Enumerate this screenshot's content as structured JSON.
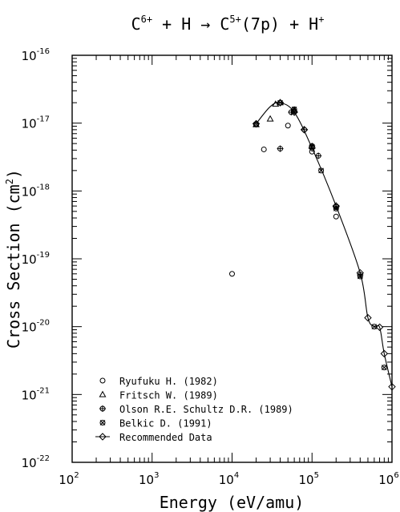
{
  "chart_data": {
    "type": "scatter",
    "title": {
      "part1": "C",
      "sup1": "6+",
      "part2": " + H → C",
      "sup2": "5+",
      "part3": "(7p) + H",
      "sup3": "+"
    },
    "xlabel": "Energy (eV/amu)",
    "ylabel": {
      "main": "Cross Section (cm",
      "sup": "2",
      "close": ")"
    },
    "x_scale": "log",
    "y_scale": "log",
    "xlim": [
      100,
      1000000
    ],
    "ylim": [
      1e-22,
      1e-16
    ],
    "x_ticks": [
      {
        "base": "10",
        "exp": "2",
        "value": 100
      },
      {
        "base": "10",
        "exp": "3",
        "value": 1000
      },
      {
        "base": "10",
        "exp": "4",
        "value": 10000
      },
      {
        "base": "10",
        "exp": "5",
        "value": 100000
      },
      {
        "base": "10",
        "exp": "6",
        "value": 1000000
      }
    ],
    "y_ticks": [
      {
        "base": "10",
        "exp": "-16",
        "value": 1e-16
      },
      {
        "base": "10",
        "exp": "-17",
        "value": 1e-17
      },
      {
        "base": "10",
        "exp": "-18",
        "value": 1e-18
      },
      {
        "base": "10",
        "exp": "-19",
        "value": 1e-19
      },
      {
        "base": "10",
        "exp": "-20",
        "value": 1e-20
      },
      {
        "base": "10",
        "exp": "-21",
        "value": 1e-21
      },
      {
        "base": "10",
        "exp": "-22",
        "value": 1e-22
      }
    ],
    "legend_position": "bottom-left",
    "series": [
      {
        "name": "Ryufuku H. (1982)",
        "marker": "circle",
        "points": [
          [
            10000,
            6e-20
          ],
          [
            25000,
            4.1e-18
          ],
          [
            50000,
            9.2e-18
          ],
          [
            100000,
            3.8e-18
          ],
          [
            200000,
            4.2e-19
          ]
        ]
      },
      {
        "name": "Fritsch W. (1989)",
        "marker": "triangle",
        "points": [
          [
            20000,
            9.5e-18
          ],
          [
            30000,
            1.15e-17
          ],
          [
            35000,
            1.9e-17
          ],
          [
            40000,
            2e-17
          ],
          [
            60000,
            1.55e-17
          ]
        ]
      },
      {
        "name": "Olson R.E. Schultz D.R. (1989)",
        "marker": "circle-plus",
        "points": [
          [
            40000,
            4.2e-18
          ],
          [
            55000,
            1.45e-17
          ],
          [
            60000,
            1.5e-17
          ],
          [
            80000,
            8e-18
          ],
          [
            100000,
            4.6e-18
          ],
          [
            120000,
            3.3e-18
          ],
          [
            200000,
            5.8e-19
          ],
          [
            400000,
            5.8e-20
          ]
        ]
      },
      {
        "name": "Belkic D. (1991)",
        "marker": "circle-x",
        "points": [
          [
            20000,
            9.5e-18
          ],
          [
            40000,
            2e-17
          ],
          [
            60000,
            1.6e-17
          ],
          [
            100000,
            4.5e-18
          ],
          [
            130000,
            2e-18
          ],
          [
            200000,
            5.5e-19
          ],
          [
            400000,
            5.5e-20
          ],
          [
            600000,
            1e-20
          ],
          [
            800000,
            2.5e-21
          ]
        ]
      },
      {
        "name": "Recommended Data",
        "marker": "diamond",
        "line": true,
        "points": [
          [
            20000,
            9.8e-18
          ],
          [
            30000,
            1.75e-17
          ],
          [
            40000,
            2e-17
          ],
          [
            60000,
            1.45e-17
          ],
          [
            100000,
            4.3e-18
          ],
          [
            200000,
            6e-19
          ],
          [
            400000,
            6.2e-20
          ],
          [
            500000,
            1.35e-20
          ],
          [
            600000,
            1e-20
          ],
          [
            700000,
            9.8e-21
          ],
          [
            800000,
            4e-21
          ],
          [
            1000000,
            1.3e-21
          ]
        ],
        "marker_points": [
          [
            20000,
            9.8e-18
          ],
          [
            40000,
            2e-17
          ],
          [
            60000,
            1.45e-17
          ],
          [
            80000,
            8e-18
          ],
          [
            100000,
            4.3e-18
          ],
          [
            200000,
            6e-19
          ],
          [
            400000,
            6.2e-20
          ],
          [
            500000,
            1.35e-20
          ],
          [
            700000,
            9.8e-21
          ],
          [
            800000,
            4e-21
          ],
          [
            1000000,
            1.3e-21
          ]
        ]
      }
    ]
  }
}
